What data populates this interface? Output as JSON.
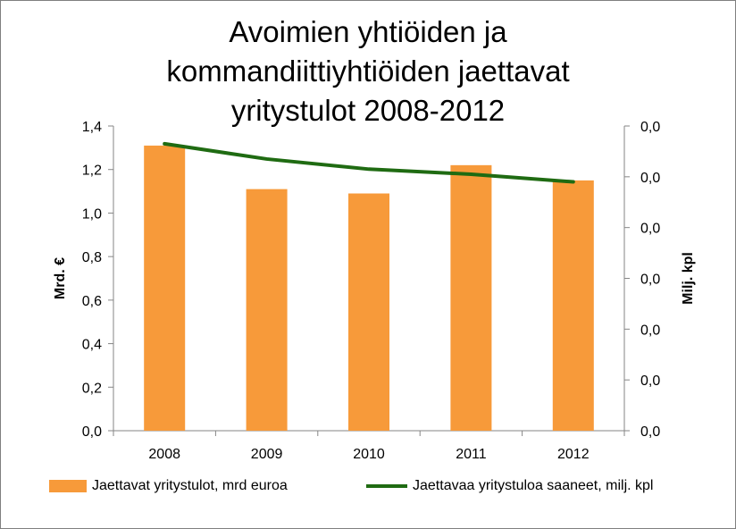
{
  "chart_data": {
    "type": "bar",
    "title": [
      "Avoimien yhtiöiden  ja",
      "kommandiittiyhtiöiden jaettavat",
      "yritystulot 2008-2012"
    ],
    "categories": [
      "2008",
      "2009",
      "2010",
      "2011",
      "2012"
    ],
    "series": [
      {
        "name": "Jaettavat yritystulot, mrd euroa",
        "type": "bar",
        "axis": "left",
        "color": "#f79a3a",
        "values": [
          1.31,
          1.11,
          1.09,
          1.22,
          1.15
        ]
      },
      {
        "name": "Jaettavaa yritystuloa saaneet, milj. kpl",
        "type": "line",
        "axis": "right",
        "color": "#1f6b12",
        "values": [
          0.0565,
          0.0535,
          0.0515,
          0.0505,
          0.049
        ]
      }
    ],
    "y_left": {
      "label": "Mrd. €",
      "ylim": [
        0,
        1.4
      ],
      "ticks": [
        "0,0",
        "0,2",
        "0,4",
        "0,6",
        "0,8",
        "1,0",
        "1,2",
        "1,4"
      ]
    },
    "y_right": {
      "label": "Milj. kpl",
      "ylim": [
        0,
        0.06
      ],
      "ticks": [
        "0,0",
        "0,0",
        "0,0",
        "0,0",
        "0,0",
        "0,0",
        "0,0"
      ]
    },
    "grid": false,
    "legend": "bottom"
  }
}
